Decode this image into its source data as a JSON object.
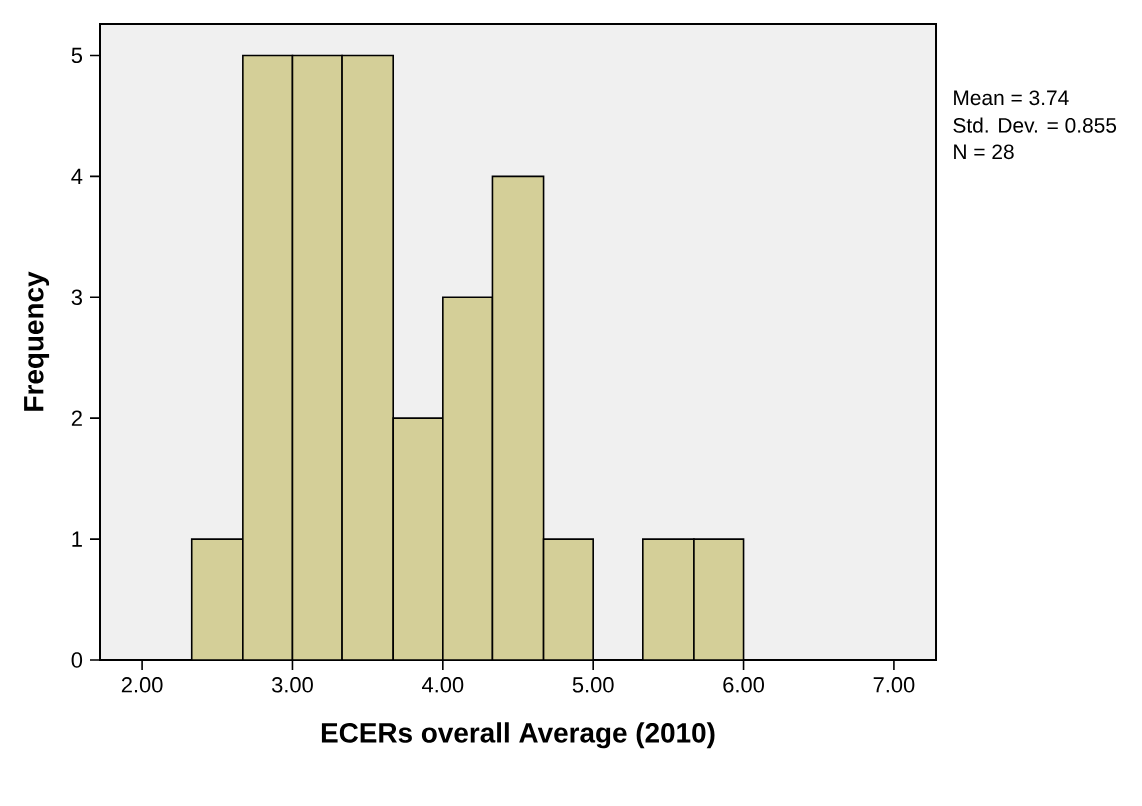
{
  "chart_data": {
    "type": "histogram",
    "xlabel": "ECERs overall Average (2010)",
    "ylabel": "Frequency",
    "bins": [
      2.33,
      2.67,
      3.0,
      3.33,
      3.67,
      4.0,
      4.33,
      4.67,
      5.0,
      5.33,
      5.67,
      6.0
    ],
    "values": [
      1,
      5,
      5,
      5,
      2,
      3,
      4,
      1,
      0,
      1,
      1
    ],
    "color": "#d4cf98",
    "xlim": [
      1.72,
      7.28
    ],
    "ylim": [
      0,
      5.26
    ],
    "xticks": [
      {
        "value": 2,
        "label": "2.00"
      },
      {
        "value": 3,
        "label": "3.00"
      },
      {
        "value": 4,
        "label": "4.00"
      },
      {
        "value": 5,
        "label": "5.00"
      },
      {
        "value": 6,
        "label": "6.00"
      },
      {
        "value": 7,
        "label": "7.00"
      }
    ],
    "yticks": [
      0,
      1,
      2,
      3,
      4,
      5
    ],
    "annotations": [
      "Mean = 3.74",
      "Std. Dev. = 0.855",
      "N = 28"
    ]
  }
}
